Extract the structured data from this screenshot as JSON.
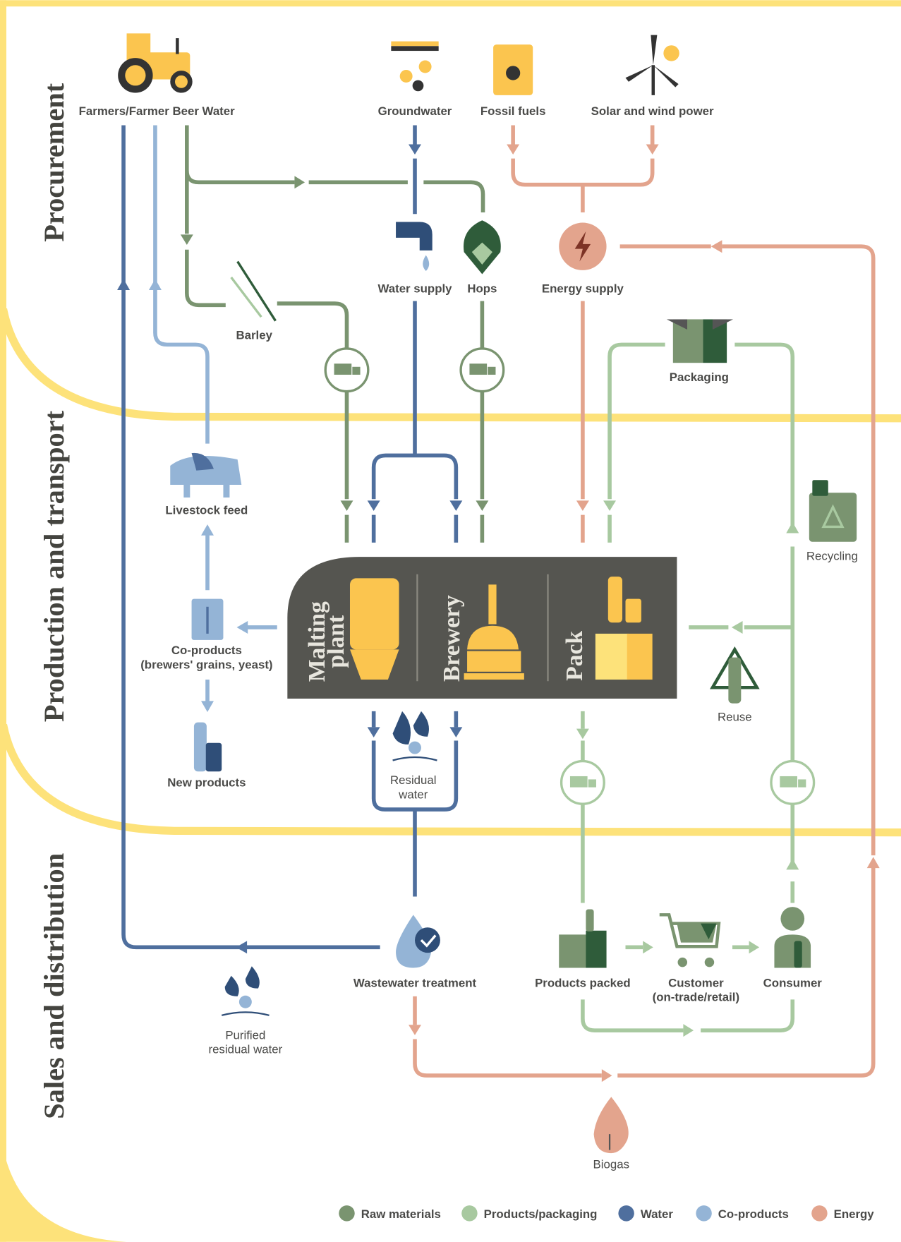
{
  "sections": [
    "Procurement",
    "Production and transport",
    "Sales and distribution"
  ],
  "nodes": [
    {
      "lines": [
        "Farmers/Farmer Beer Water"
      ]
    },
    {
      "lines": [
        "Groundwater"
      ]
    },
    {
      "lines": [
        "Fossil fuels"
      ]
    },
    {
      "lines": [
        "Solar and wind power"
      ]
    },
    {
      "lines": [
        "Water supply"
      ]
    },
    {
      "lines": [
        "Hops"
      ]
    },
    {
      "lines": [
        "Energy supply"
      ]
    },
    {
      "lines": [
        "Barley"
      ]
    },
    {
      "lines": [
        "Packaging"
      ]
    },
    {
      "lines": [
        "Livestock feed"
      ]
    },
    {
      "lines": [
        "Recycling"
      ]
    },
    {
      "lines": [
        "Co-products",
        "(brewers' grains, yeast)"
      ]
    },
    {
      "lines": [
        "Reuse"
      ]
    },
    {
      "lines": [
        "New products"
      ]
    },
    {
      "lines": [
        "Residual",
        "water"
      ]
    },
    {
      "lines": [
        "Wastewater treatment"
      ]
    },
    {
      "lines": [
        "Products packed"
      ]
    },
    {
      "lines": [
        "Customer",
        "(on-trade/retail)"
      ]
    },
    {
      "lines": [
        "Consumer"
      ]
    },
    {
      "lines": [
        "Purified",
        "residual water"
      ]
    },
    {
      "lines": [
        "Biogas"
      ]
    }
  ],
  "plant": [
    {
      "lines": [
        "Malting",
        "plant"
      ]
    },
    {
      "lines": [
        "Brewery"
      ]
    },
    {
      "lines": [
        "Pack"
      ]
    }
  ],
  "legend": [
    {
      "label": "Raw materials",
      "color": "#7a9470"
    },
    {
      "label": "Products/packaging",
      "color": "#a8c9a0"
    },
    {
      "label": "Water",
      "color": "#4f6f9e"
    },
    {
      "label": "Co-products",
      "color": "#94b4d6"
    },
    {
      "label": "Energy",
      "color": "#e3a48d"
    }
  ]
}
